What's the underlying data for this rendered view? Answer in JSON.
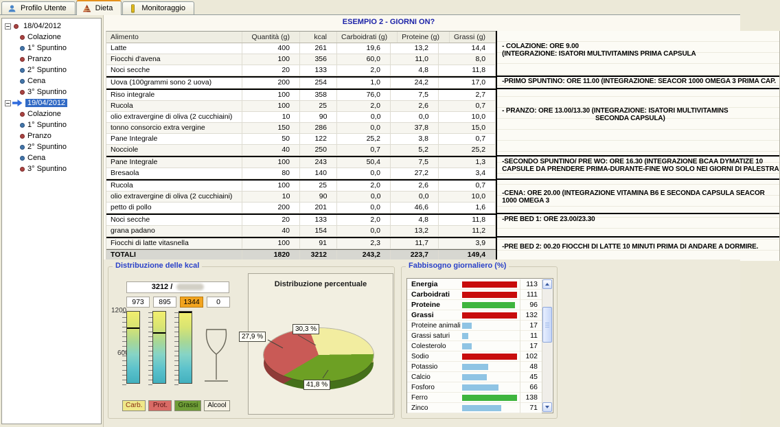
{
  "tabs": [
    {
      "label": "Profilo Utente",
      "icon": "user-icon",
      "active": false
    },
    {
      "label": "Dieta",
      "icon": "pyramid-icon",
      "active": true
    },
    {
      "label": "Monitoraggio",
      "icon": "monitor-icon",
      "active": false
    }
  ],
  "header": {
    "title": "ESEMPIO 2 - GIORNI ON?"
  },
  "tree": {
    "days": [
      {
        "date": "18/04/2012",
        "selected": false,
        "meals": [
          {
            "label": "Colazione",
            "bullet": "red"
          },
          {
            "label": "1° Spuntino",
            "bullet": "blue"
          },
          {
            "label": "Pranzo",
            "bullet": "red"
          },
          {
            "label": "2° Spuntino",
            "bullet": "blue"
          },
          {
            "label": "Cena",
            "bullet": "blue"
          },
          {
            "label": "3° Spuntino",
            "bullet": "red"
          }
        ]
      },
      {
        "date": "19/04/2012",
        "selected": true,
        "meals": [
          {
            "label": "Colazione",
            "bullet": "red"
          },
          {
            "label": "1° Spuntino",
            "bullet": "blue"
          },
          {
            "label": "Pranzo",
            "bullet": "red"
          },
          {
            "label": "2° Spuntino",
            "bullet": "blue"
          },
          {
            "label": "Cena",
            "bullet": "blue"
          },
          {
            "label": "3° Spuntino",
            "bullet": "red"
          }
        ]
      }
    ]
  },
  "table": {
    "columns": [
      "Alimento",
      "Quantità (g)",
      "kcal",
      "Carboidrati (g)",
      "Proteine (g)",
      "Grassi (g)"
    ],
    "rows": [
      {
        "alimento": "Latte",
        "qta": "400",
        "kcal": "261",
        "carb": "19,6",
        "prot": "13,2",
        "grassi": "14,4",
        "gruppo": 1
      },
      {
        "alimento": "Fiocchi d'avena",
        "qta": "100",
        "kcal": "356",
        "carb": "60,0",
        "prot": "11,0",
        "grassi": "8,0",
        "gruppo": 1
      },
      {
        "alimento": "Noci secche",
        "qta": "20",
        "kcal": "133",
        "carb": "2,0",
        "prot": "4,8",
        "grassi": "11,8",
        "gruppo": 1
      },
      {
        "alimento": "Uova (100grammi sono 2 uova)",
        "qta": "200",
        "kcal": "254",
        "carb": "1,0",
        "prot": "24,2",
        "grassi": "17,0",
        "gruppo": 2
      },
      {
        "alimento": "Riso integrale",
        "qta": "100",
        "kcal": "358",
        "carb": "76,0",
        "prot": "7,5",
        "grassi": "2,7",
        "gruppo": 3
      },
      {
        "alimento": "Rucola",
        "qta": "100",
        "kcal": "25",
        "carb": "2,0",
        "prot": "2,6",
        "grassi": "0,7",
        "gruppo": 3
      },
      {
        "alimento": "olio extravergine di oliva (2 cucchiaini)",
        "qta": "10",
        "kcal": "90",
        "carb": "0,0",
        "prot": "0,0",
        "grassi": "10,0",
        "gruppo": 3
      },
      {
        "alimento": "tonno consorcio extra vergine",
        "qta": "150",
        "kcal": "286",
        "carb": "0,0",
        "prot": "37,8",
        "grassi": "15,0",
        "gruppo": 3
      },
      {
        "alimento": "Pane Integrale",
        "qta": "50",
        "kcal": "122",
        "carb": "25,2",
        "prot": "3,8",
        "grassi": "0,7",
        "gruppo": 3
      },
      {
        "alimento": "Nocciole",
        "qta": "40",
        "kcal": "250",
        "carb": "0,7",
        "prot": "5,2",
        "grassi": "25,2",
        "gruppo": 3
      },
      {
        "alimento": "Pane Integrale",
        "qta": "100",
        "kcal": "243",
        "carb": "50,4",
        "prot": "7,5",
        "grassi": "1,3",
        "gruppo": 4
      },
      {
        "alimento": "Bresaola",
        "qta": "80",
        "kcal": "140",
        "carb": "0,0",
        "prot": "27,2",
        "grassi": "3,4",
        "gruppo": 4
      },
      {
        "alimento": "Rucola",
        "qta": "100",
        "kcal": "25",
        "carb": "2,0",
        "prot": "2,6",
        "grassi": "0,7",
        "gruppo": 5
      },
      {
        "alimento": "olio extravergine di oliva (2 cucchiaini)",
        "qta": "10",
        "kcal": "90",
        "carb": "0,0",
        "prot": "0,0",
        "grassi": "10,0",
        "gruppo": 5
      },
      {
        "alimento": "petto di pollo",
        "qta": "200",
        "kcal": "201",
        "carb": "0,0",
        "prot": "46,6",
        "grassi": "1,6",
        "gruppo": 5
      },
      {
        "alimento": "Noci secche",
        "qta": "20",
        "kcal": "133",
        "carb": "2,0",
        "prot": "4,8",
        "grassi": "11,8",
        "gruppo": 6
      },
      {
        "alimento": "grana padano",
        "qta": "40",
        "kcal": "154",
        "carb": "0,0",
        "prot": "13,2",
        "grassi": "11,2",
        "gruppo": 6
      },
      {
        "alimento": "Fiocchi di latte vitasnella",
        "qta": "100",
        "kcal": "91",
        "carb": "2,3",
        "prot": "11,7",
        "grassi": "3,9",
        "gruppo": 7
      }
    ],
    "totals": {
      "label": "TOTALI",
      "qta": "1820",
      "kcal": "3212",
      "carb": "243,2",
      "prot": "223,7",
      "grassi": "149,4"
    }
  },
  "annotations": [
    {
      "meal": "colazione",
      "lines": [
        "- COLAZIONE: ORE 9.00",
        "(INTEGRAZIONE: ISATORI MULTIVITAMINS PRIMA CAPSULA"
      ]
    },
    {
      "meal": "primo-spuntino",
      "lines": [
        "-PRIMO SPUNTINO: ORE 11.00 (INTEGRAZIONE: SEACOR 1000 OMEGA 3 PRIMA CAP."
      ]
    },
    {
      "meal": "pranzo",
      "lines": [
        "- PRANZO: ORE 13.00/13.30 (INTEGRAZIONE: ISATORI MULTIVITAMINS",
        "SECONDA CAPSULA)"
      ]
    },
    {
      "meal": "secondo-spuntino",
      "lines": [
        "-SECONDO SPUNTINO/ PRE WO: ORE 16.30 (INTEGRAZIONE BCAA DYMATIZE 10",
        "CAPSULE DA PRENDERE PRIMA-DURANTE-FINE WO SOLO NEI GIORNI DI PALESTRA"
      ]
    },
    {
      "meal": "cena",
      "lines": [
        "-CENA: ORE 20.00 (INTEGRAZIONE VITAMINA B6 E SECONDA CAPSULA SEACOR",
        "1000 OMEGA 3"
      ]
    },
    {
      "meal": "pre-bed-1",
      "lines": [
        "-PRE BED 1: ORE 23.00/23.30"
      ]
    },
    {
      "meal": "pre-bed-2",
      "lines": [
        "-PRE BED 2: 00.20 FIOCCHI DI LATTE 10 MINUTI PRIMA DI ANDARE A DORMIRE."
      ]
    }
  ],
  "kcal_panel": {
    "title": "Distribuzione delle kcal",
    "total_label": "3212 /",
    "total_target_redacted": true,
    "value_boxes": [
      {
        "value": "973",
        "highlighted": false
      },
      {
        "value": "895",
        "highlighted": false
      },
      {
        "value": "1344",
        "highlighted": true
      },
      {
        "value": "0",
        "highlighted": false
      }
    ],
    "highlight_color": "#f2a41f",
    "scale": [
      "1200",
      "600"
    ],
    "gauges": [
      {
        "label": "Carb.",
        "value": 973,
        "kind": "bar",
        "label_bg": "#efe88a",
        "label_color": "#8a2f12"
      },
      {
        "label": "Prot.",
        "value": 895,
        "kind": "bar",
        "label_bg": "#d96b66",
        "label_color": "#541111"
      },
      {
        "label": "Grassi",
        "value": 1344,
        "kind": "bar",
        "label_bg": "#6f9d37",
        "label_color": "#1c3008"
      },
      {
        "label": "Alcool",
        "value": 0,
        "kind": "glass",
        "label_bg": "#f7f3e6",
        "label_color": "#000000"
      }
    ]
  },
  "pie_panel": {
    "title": "Distribuzione percentuale",
    "slices": [
      {
        "name": "Carboidrati",
        "label": "30,3 %",
        "value": 30.3,
        "color": "#f2eda0",
        "side_color": "#bdb65e"
      },
      {
        "name": "Grassi",
        "label": "41,8 %",
        "value": 41.8,
        "color": "#6da024",
        "side_color": "#45701a"
      },
      {
        "name": "Proteine",
        "label": "27,9 %",
        "value": 27.9,
        "color": "#c95a56",
        "side_color": "#8f3b38"
      }
    ]
  },
  "fabbisogno": {
    "title": "Fabbisogno giornaliero (%)",
    "items": [
      {
        "label": "Energia",
        "value": 113,
        "color": "#c80c0c",
        "bold": true
      },
      {
        "label": "Carboidrati",
        "value": 111,
        "color": "#c80c0c",
        "bold": true
      },
      {
        "label": "Proteine",
        "value": 96,
        "color": "#3eb53e",
        "bold": true
      },
      {
        "label": "Grassi",
        "value": 132,
        "color": "#c80c0c",
        "bold": true
      },
      {
        "label": "Proteine animali",
        "value": 17,
        "color": "#8fc4e4",
        "bold": false
      },
      {
        "label": "Grassi saturi",
        "value": 11,
        "color": "#8fc4e4",
        "bold": false
      },
      {
        "label": "Colesterolo",
        "value": 17,
        "color": "#8fc4e4",
        "bold": false
      },
      {
        "label": "Sodio",
        "value": 102,
        "color": "#c80c0c",
        "bold": false
      },
      {
        "label": "Potassio",
        "value": 48,
        "color": "#8fc4e4",
        "bold": false
      },
      {
        "label": "Calcio",
        "value": 45,
        "color": "#8fc4e4",
        "bold": false
      },
      {
        "label": "Fosforo",
        "value": 66,
        "color": "#8fc4e4",
        "bold": false
      },
      {
        "label": "Ferro",
        "value": 138,
        "color": "#3eb53e",
        "bold": false
      },
      {
        "label": "Zinco",
        "value": 71,
        "color": "#8fc4e4",
        "bold": false
      }
    ]
  },
  "chart_data": [
    {
      "type": "bar",
      "title": "Distribuzione delle kcal",
      "categories": [
        "Carb.",
        "Prot.",
        "Grassi",
        "Alcool"
      ],
      "values": [
        973,
        895,
        1344,
        0
      ],
      "ylabel": "kcal",
      "ylim": [
        0,
        1200
      ],
      "annotations": [
        "total kcal shown: 3212"
      ]
    },
    {
      "type": "pie",
      "title": "Distribuzione percentuale",
      "labels": [
        "Carboidrati",
        "Grassi",
        "Proteine"
      ],
      "values": [
        30.3,
        41.8,
        27.9
      ],
      "colors": [
        "#f2eda0",
        "#6da024",
        "#c95a56"
      ],
      "data_labels": [
        "30,3 %",
        "41,8 %",
        "27,9 %"
      ]
    },
    {
      "type": "bar",
      "orientation": "horizontal",
      "title": "Fabbisogno giornaliero (%)",
      "categories": [
        "Energia",
        "Carboidrati",
        "Proteine",
        "Grassi",
        "Proteine animali",
        "Grassi saturi",
        "Colesterolo",
        "Sodio",
        "Potassio",
        "Calcio",
        "Fosforo",
        "Ferro",
        "Zinco"
      ],
      "values": [
        113,
        111,
        96,
        132,
        17,
        11,
        17,
        102,
        48,
        45,
        66,
        138,
        71
      ],
      "xlim": [
        0,
        100
      ],
      "note": "bars capped at 100%"
    }
  ]
}
